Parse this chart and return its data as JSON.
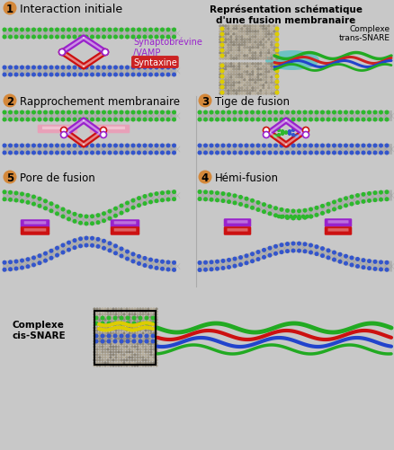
{
  "bg_color": "#c8c8c8",
  "title_top_right": "Représentation schématique\nd'une fusion membranaire",
  "complexe_trans": "Complexe\ntrans-SNARE",
  "complexe_cis": "Complexe\ncis-SNARE",
  "labels": {
    "1": "Interaction initiale",
    "2": "Rapprochement membranaire",
    "3": "Tige de fusion",
    "4": "Hémi-fusion",
    "5": "Pore de fusion"
  },
  "protein_labels": {
    "synaptobrevine": "Synaptobrévine\n/VAMP",
    "syntaxine": "Syntaxine"
  },
  "colors": {
    "background": "#c8c8c8",
    "membrane_body": "#b0b0b0",
    "membrane_mesh": "#a0a0a0",
    "green_dots": "#2db82d",
    "blue_dots": "#3355cc",
    "purple": "#9922cc",
    "purple_light": "#cc88ee",
    "red": "#cc1111",
    "red_light": "#ff6666",
    "pink": "#e8a0b8",
    "yellow": "#ddcc00",
    "teal": "#00bbbb",
    "label_circle": "#d4883a",
    "text_dark": "#111111",
    "text_purple": "#9922cc",
    "text_red": "#cc2222",
    "white": "#ffffff",
    "gray_mesh": "#b8b4a8"
  }
}
